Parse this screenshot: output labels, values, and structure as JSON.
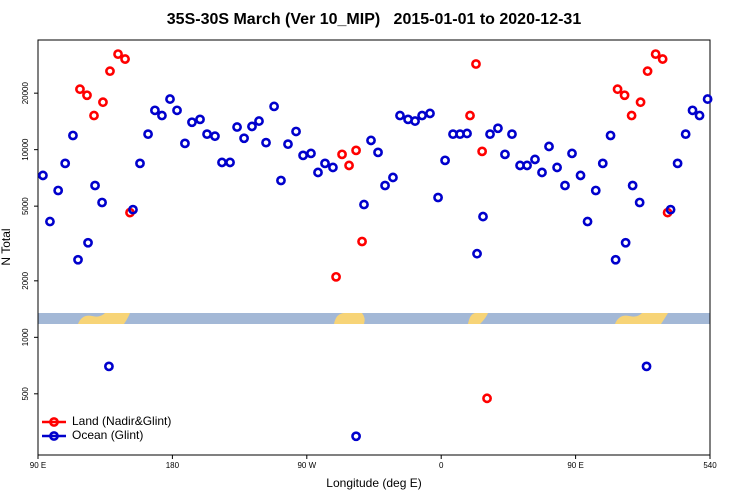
{
  "chart_data": {
    "type": "scatter",
    "title": "35S-30S March (Ver 10_MIP)   2015-01-01 to 2020-12-31",
    "x_label": "Longitude (deg E)",
    "y_label": "N Total",
    "xlim": [
      90,
      540
    ],
    "xticks": [
      {
        "value": 90,
        "label": "90 E"
      },
      180,
      {
        "value": 270,
        "label": "90 W"
      },
      {
        "value": 360,
        "label": "0"
      },
      {
        "value": 450,
        "label": "90 E"
      },
      540
    ],
    "ylim": [
      236,
      38400
    ],
    "y_scale": "log",
    "yticks": [
      500,
      1000,
      2000,
      5000,
      10000,
      20000
    ],
    "legend": "bottom-left",
    "series": [
      {
        "name": "Land (Nadir&Glint)",
        "color": "#ff0000",
        "x": [
          118.1,
          122.8,
          127.5,
          133.5,
          138.2,
          143.6,
          148.3,
          151.6,
          289.6,
          293.6,
          298.3,
          303,
          307,
          379.3,
          383.3,
          387.4,
          390.7,
          478.1,
          482.8,
          487.5,
          493.5,
          498.2,
          503.6,
          508.3,
          511.6
        ],
        "values": [
          21000,
          19500,
          15200,
          17900,
          26200,
          32300,
          30400,
          4620,
          2100,
          9440,
          8240,
          9910,
          3240,
          15200,
          28600,
          9790,
          473,
          21000,
          19500,
          15200,
          17900,
          26200,
          32300,
          30400,
          4620
        ]
      },
      {
        "name": "Ocean (Glint)",
        "color": "#0000cc",
        "x": [
          93.3,
          98,
          103.5,
          108.2,
          113.4,
          116.8,
          123.5,
          128.2,
          132.9,
          137.5,
          153.6,
          158.3,
          163.7,
          168.3,
          173,
          178.4,
          183.1,
          188.4,
          193.1,
          198.5,
          203.2,
          208.5,
          213.2,
          218.6,
          223.3,
          228,
          233.3,
          238,
          242.7,
          248.1,
          252.7,
          257.4,
          262.8,
          267.5,
          272.8,
          277.5,
          282.2,
          287.5,
          303,
          308.3,
          313,
          317.7,
          322.4,
          327.7,
          332.4,
          337.8,
          342.5,
          347.2,
          352.5,
          357.9,
          362.6,
          367.9,
          372.6,
          377.3,
          384,
          388,
          392.7,
          398,
          402.7,
          407.4,
          412.8,
          417.5,
          422.8,
          427.5,
          432.2,
          437.6,
          442.9,
          447.6,
          453.3,
          458,
          463.5,
          468.2,
          473.4,
          476.8,
          483.5,
          488.2,
          492.9,
          497.5,
          513.6,
          518.3,
          523.7,
          528.3,
          533,
          538.4
        ],
        "values": [
          7290,
          4140,
          6060,
          8450,
          11900,
          2590,
          3190,
          6440,
          5230,
          700,
          4790,
          8450,
          12100,
          16200,
          15200,
          18600,
          16200,
          10800,
          14000,
          14500,
          12100,
          11800,
          8550,
          8550,
          13200,
          11500,
          13300,
          14200,
          10900,
          17000,
          6850,
          10700,
          12500,
          9320,
          9550,
          7560,
          8450,
          8040,
          297,
          5100,
          11200,
          9670,
          6440,
          7110,
          15200,
          14500,
          14200,
          15200,
          15600,
          5560,
          8770,
          12100,
          12100,
          12200,
          2790,
          4400,
          12100,
          13000,
          9440,
          12100,
          8240,
          8240,
          8870,
          7560,
          10400,
          8040,
          6440,
          9550,
          7290,
          4140,
          6060,
          8450,
          11900,
          2590,
          3190,
          6440,
          5230,
          700,
          4790,
          8450,
          12100,
          16200,
          15200,
          18600
        ]
      }
    ]
  }
}
